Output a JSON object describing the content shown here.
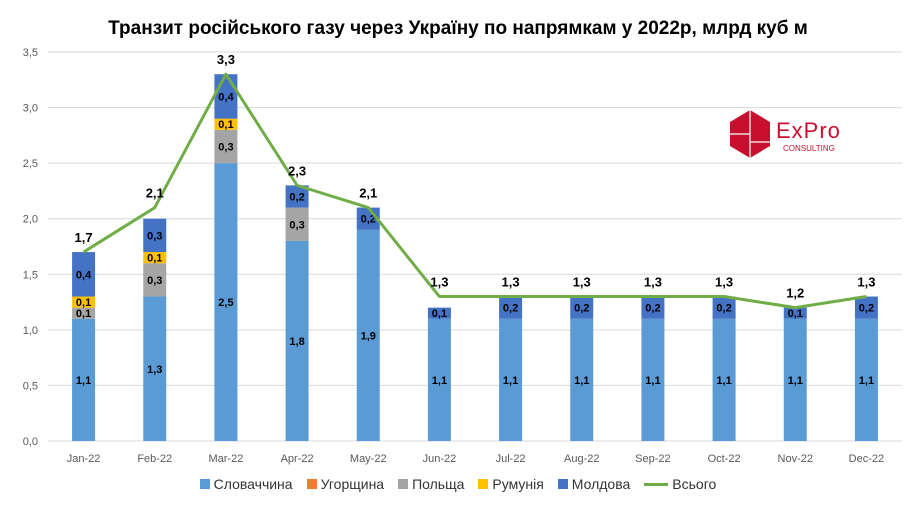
{
  "chart_data": {
    "type": "bar",
    "stacked": true,
    "title": "Транзит російського газу через Україну по напрямкам у 2022р, млрд куб м",
    "xlabel": "",
    "ylabel": "",
    "ylim": [
      0,
      3.5
    ],
    "yticks": [
      "0,0",
      "0,5",
      "1,0",
      "1,5",
      "2,0",
      "2,5",
      "3,0",
      "3,5"
    ],
    "grid": true,
    "legend": "bottom",
    "categories": [
      "Jan-22",
      "Feb-22",
      "Mar-22",
      "Apr-22",
      "May-22",
      "Jun-22",
      "Jul-22",
      "Aug-22",
      "Sep-22",
      "Oct-22",
      "Nov-22",
      "Dec-22"
    ],
    "series": [
      {
        "name": "Словаччина",
        "color": "#5b9bd5",
        "values": [
          1.1,
          1.3,
          2.5,
          1.8,
          1.9,
          1.1,
          1.1,
          1.1,
          1.1,
          1.1,
          1.1,
          1.1
        ]
      },
      {
        "name": "Угорщина",
        "color": "#ed7d31",
        "values": [
          0,
          0,
          0,
          0,
          0,
          0,
          0,
          0,
          0,
          0,
          0,
          0
        ]
      },
      {
        "name": "Польща",
        "color": "#a5a5a5",
        "values": [
          0.1,
          0.3,
          0.3,
          0.3,
          0,
          0,
          0,
          0,
          0,
          0,
          0,
          0
        ]
      },
      {
        "name": "Румунія",
        "color": "#ffc000",
        "values": [
          0.1,
          0.1,
          0.1,
          0,
          0,
          0,
          0,
          0,
          0,
          0,
          0,
          0
        ]
      },
      {
        "name": "Молдова",
        "color": "#4472c4",
        "values": [
          0.4,
          0.3,
          0.4,
          0.2,
          0.2,
          0.1,
          0.2,
          0.2,
          0.2,
          0.2,
          0.1,
          0.2
        ]
      }
    ],
    "line": {
      "name": "Всього",
      "color": "#70ad47",
      "values": [
        1.7,
        2.1,
        3.3,
        2.3,
        2.1,
        1.3,
        1.3,
        1.3,
        1.3,
        1.3,
        1.2,
        1.3
      ]
    }
  },
  "logo": {
    "name": "ExPro",
    "sub": "CONSULTING"
  }
}
